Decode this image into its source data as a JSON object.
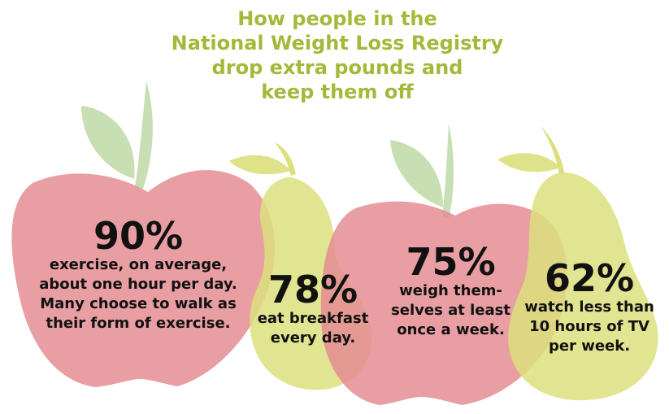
{
  "title_lines": [
    "How people in the",
    "National Weight Loss Registry",
    "drop extra pounds and",
    "keep them off"
  ],
  "stats": [
    {
      "percent": "90%",
      "lines": [
        "exercise, on average,",
        "about one hour per day.",
        "Many choose to walk as",
        "their form of exercise."
      ]
    },
    {
      "percent": "78%",
      "lines": [
        "eat breakfast",
        "every day."
      ]
    },
    {
      "percent": "75%",
      "lines": [
        "weigh them-",
        "selves at least",
        "once a week."
      ]
    },
    {
      "percent": "62%",
      "lines": [
        "watch less than",
        "10 hours of TV",
        "per week."
      ]
    }
  ],
  "colors": {
    "title": "#a6b83a",
    "apple": "#e48d93",
    "pear": "#dcdf7c",
    "leaf": "#c1dcaa",
    "stem": "#e0e295"
  }
}
